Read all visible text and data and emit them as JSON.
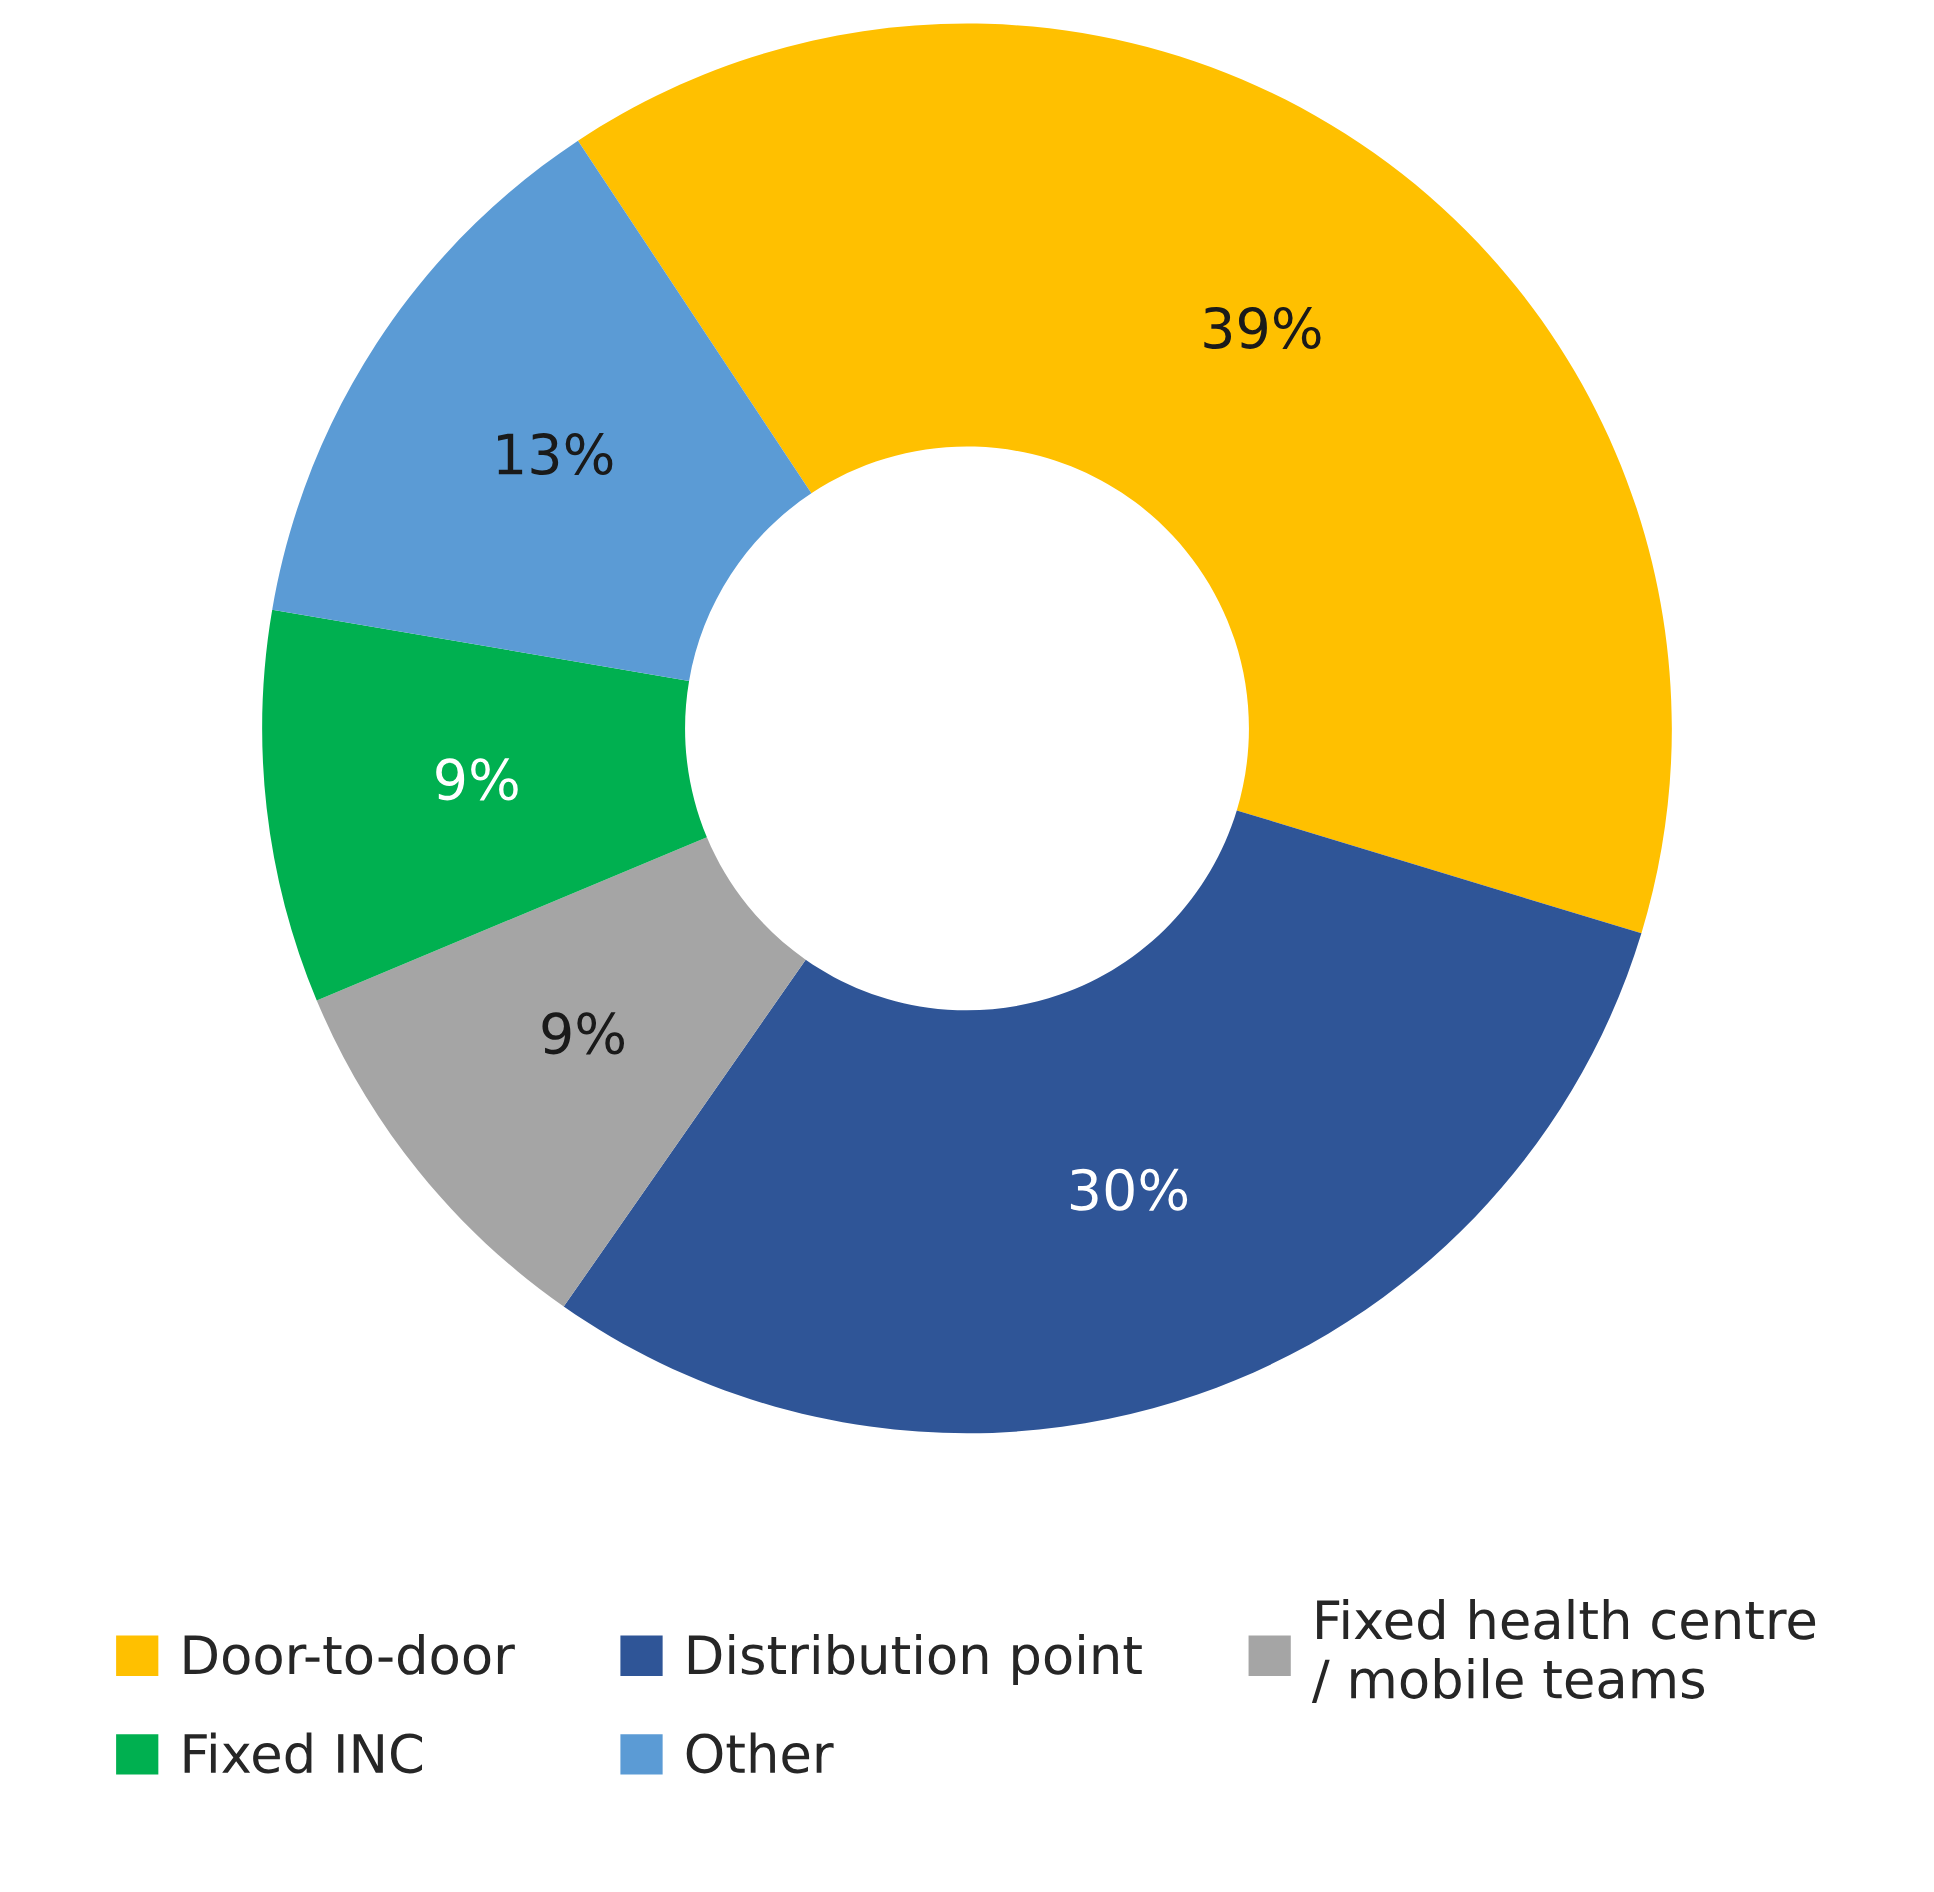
{
  "chart_data": {
    "type": "donut",
    "categories": [
      "Door-to-door",
      "Distribution point",
      "Fixed health centre\n/ mobile teams",
      "Fixed INC",
      "Other"
    ],
    "values": [
      39,
      30,
      9,
      9,
      13
    ],
    "value_labels": [
      "39%",
      "30%",
      "9%",
      "9%",
      "13%"
    ],
    "colors": [
      "#ffc000",
      "#2f5597",
      "#a5a5a5",
      "#00b050",
      "#5b9bd5"
    ],
    "legend": "bottom"
  }
}
